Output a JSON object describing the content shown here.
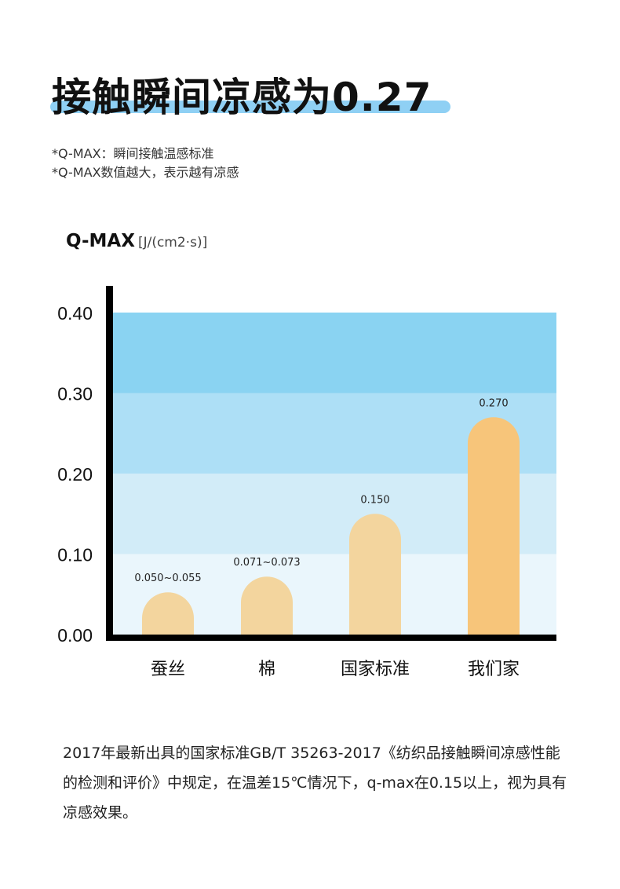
{
  "headline": "接触瞬间凉感为0.27",
  "notes": [
    "*Q-MAX：瞬间接触温感标准",
    "*Q-MAX数值越大，表示越有凉感"
  ],
  "metric_label": "Q-MAX",
  "unit_label": "[J/(cm2·s)]",
  "chart_data": {
    "type": "bar",
    "categories": [
      "蚕丝",
      "棉",
      "国家标准",
      "我们家"
    ],
    "values": [
      0.0525,
      0.072,
      0.15,
      0.27
    ],
    "data_labels": [
      "0.050~0.055",
      "0.071~0.073",
      "0.150",
      "0.270"
    ],
    "ylim": [
      0,
      0.4
    ],
    "yticks": [
      "0.00",
      "0.10",
      "0.20",
      "0.30",
      "0.40"
    ],
    "grid": false,
    "band_colors": [
      "#eaf6fc",
      "#d2ecf8",
      "#addff6",
      "#8ad3f2"
    ],
    "bar_colors": [
      "#f3d59e",
      "#f3d59e",
      "#f3d59e",
      "#f7c57a"
    ],
    "axis_color": "#000000"
  },
  "paragraph": "2017年最新出具的国家标准GB/T 35263-2017《纺织品接触瞬间凉感性能的检测和评价》中规定，在温差15℃情况下，q-max在0.15以上，视为具有凉感效果。"
}
